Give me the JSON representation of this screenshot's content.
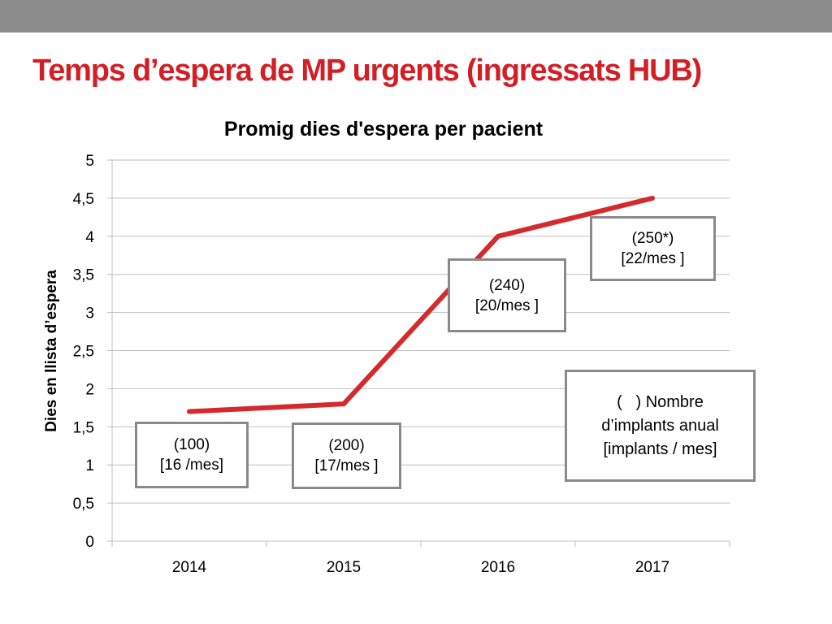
{
  "header": {
    "bar_color": "#8c8c8c",
    "title": "Temps d’espera de MP urgents (ingressats HUB)",
    "title_color": "#d21f26"
  },
  "chart_data": {
    "type": "line",
    "title": "Promig dies d'espera per pacient",
    "xlabel": "",
    "ylabel": "Dies  en llista d’espera",
    "categories": [
      "2014",
      "2015",
      "2016",
      "2017"
    ],
    "series": [
      {
        "values": [
          1.7,
          1.8,
          4.0,
          4.5
        ],
        "color": "#d42a2e"
      }
    ],
    "ylim": [
      0,
      5
    ],
    "yticks": [
      "0",
      "0,5",
      "1",
      "1,5",
      "2",
      "2,5",
      "3",
      "3,5",
      "4",
      "4,5",
      "5"
    ],
    "grid": true,
    "legend": "none",
    "annotations": [
      {
        "category": "2014",
        "line1": "(100)",
        "line2": "[16 /mes]"
      },
      {
        "category": "2015",
        "line1": "(200)",
        "line2": "[17/mes ]"
      },
      {
        "category": "2016",
        "line1": "(240)",
        "line2": "[20/mes ]"
      },
      {
        "category": "2017",
        "line1": "(250*)",
        "line2": "[22/mes ]"
      }
    ],
    "legend_note": {
      "line1": "(   ) Nombre",
      "line2": "d’implants anual",
      "line3": "[implants / mes]"
    }
  }
}
